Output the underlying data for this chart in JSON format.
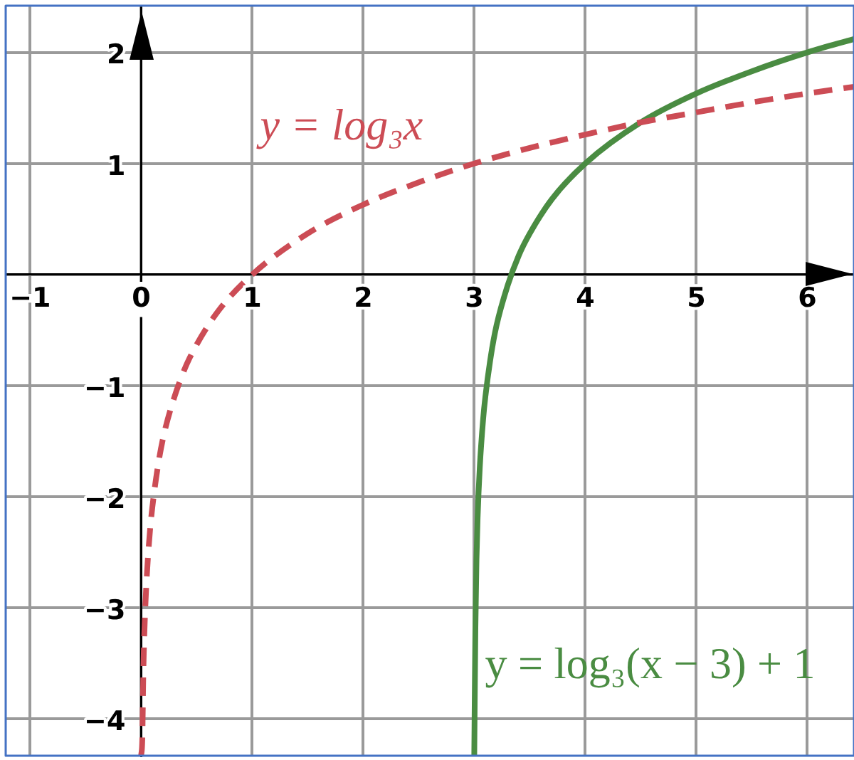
{
  "chart_data": {
    "type": "line",
    "xlim": [
      -1.22,
      6.42
    ],
    "ylim": [
      -4.33,
      2.42
    ],
    "xticks": [
      {
        "value": -1,
        "label": "−1"
      },
      0,
      1,
      2,
      3,
      4,
      5,
      6
    ],
    "yticks": [
      {
        "value": -4,
        "label": "−4"
      },
      {
        "value": -3,
        "label": "−3"
      },
      {
        "value": -2,
        "label": "−2"
      },
      {
        "value": -1,
        "label": "−1"
      },
      {
        "value": 0,
        "label": null
      },
      1,
      2
    ],
    "grid": true,
    "series": [
      {
        "name": "y = log₃x",
        "color": "#cc4c55",
        "line_style": "dashed",
        "x": [
          0,
          0.01,
          0.02,
          0.03,
          0.05,
          0.08,
          0.1,
          0.15,
          0.2,
          0.3,
          0.4,
          0.5,
          0.7,
          1,
          1.5,
          2,
          2.5,
          3,
          3.5,
          4,
          4.5,
          5,
          5.5,
          6,
          6.42
        ],
        "values": [
          -4.33,
          -4.19,
          -3.56,
          -3.19,
          -2.73,
          -2.3,
          -2.1,
          -1.73,
          -1.46,
          -1.1,
          -0.83,
          -0.63,
          -0.32,
          0,
          0.37,
          0.63,
          0.83,
          1,
          1.14,
          1.26,
          1.37,
          1.46,
          1.55,
          1.63,
          1.69
        ]
      },
      {
        "name": "y = log₃(x − 3) + 1",
        "color": "#4a8c42",
        "line_style": "solid",
        "x": [
          3,
          3.01,
          3.02,
          3.03,
          3.05,
          3.08,
          3.1,
          3.15,
          3.2,
          3.3,
          3.4,
          3.5,
          3.7,
          4,
          4.5,
          5,
          5.5,
          6,
          6.42
        ],
        "values": [
          -4.33,
          -3.19,
          -2.56,
          -2.19,
          -1.73,
          -1.3,
          -1.1,
          -0.73,
          -0.46,
          -0.1,
          0.17,
          0.37,
          0.68,
          1,
          1.37,
          1.63,
          1.83,
          2,
          2.12
        ]
      }
    ]
  }
}
